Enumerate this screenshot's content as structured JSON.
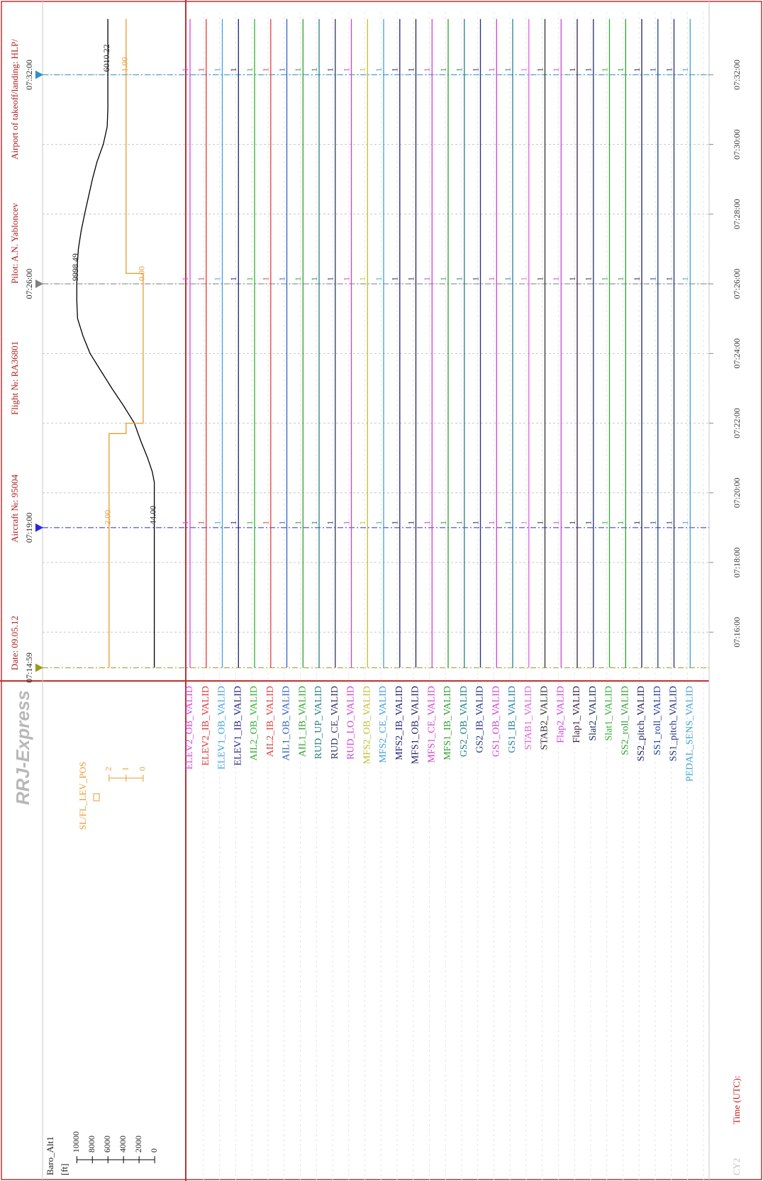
{
  "header": {
    "date": "Date: 09.05.12",
    "aircraft": "Aircraft №: 95004",
    "flight": "Flight №: RA36801",
    "pilot": "Pilot: A.N. Yabloncev",
    "airport": "Airport of takeoff/landing: HLP/"
  },
  "logo": "RRJ-Express",
  "footer": "CY2",
  "chart_data": {
    "type": "line",
    "x_label": "Time (UTC):",
    "xlim": [
      14.6,
      33.8
    ],
    "xticks": [
      {
        "value": 16,
        "label": "07:16:00"
      },
      {
        "value": 18,
        "label": "07:18:00"
      },
      {
        "value": 20,
        "label": "07:20:00"
      },
      {
        "value": 22,
        "label": "07:22:00"
      },
      {
        "value": 24,
        "label": "07:24:00"
      },
      {
        "value": 26,
        "label": "07:26:00"
      },
      {
        "value": 28,
        "label": "07:28:00"
      },
      {
        "value": 30,
        "label": "07:30:00"
      },
      {
        "value": 32,
        "label": "07:32:00"
      }
    ],
    "grid": true,
    "cursors": [
      {
        "value": 14.98,
        "label": "07:14:59",
        "color": "#9a9a20"
      },
      {
        "value": 19,
        "label": "07:19:00",
        "color": "#2828e0"
      },
      {
        "value": 26,
        "label": "07:26:00",
        "color": "#808080"
      },
      {
        "value": 32,
        "label": "07:32:00",
        "color": "#2a90c8"
      }
    ],
    "series": [
      {
        "name": "Baro_Alt1",
        "unit": "[ft]",
        "color": "#000000",
        "ylim": [
          -4000,
          14400
        ],
        "yticks": [
          0,
          2000,
          4000,
          6000,
          8000,
          10000
        ],
        "x": [
          14.98,
          19,
          20.3,
          20.6,
          21,
          21.5,
          22,
          22.5,
          23,
          23.5,
          24,
          24.5,
          25,
          25.5,
          26,
          26.5,
          27,
          27.5,
          28,
          28.5,
          29,
          29.5,
          30,
          30.5,
          31,
          32,
          33.6
        ],
        "values": [
          44,
          44,
          44,
          300,
          900,
          1800,
          2600,
          4000,
          5500,
          6900,
          8300,
          9200,
          9900,
          10000,
          9998.49,
          9950,
          9800,
          9450,
          9000,
          8500,
          8000,
          7400,
          6600,
          6100,
          6010.22,
          6010.22,
          6010.22
        ],
        "value_labels": [
          null,
          "44.00",
          null,
          null,
          null,
          null,
          null,
          null,
          null,
          null,
          null,
          null,
          null,
          null,
          "9998.49",
          null,
          null,
          null,
          null,
          null,
          null,
          null,
          null,
          null,
          null,
          "6010.22",
          null
        ]
      },
      {
        "name": "SL/FL_LEV_POS",
        "color": "#e89a30",
        "ylim": [
          -2.5,
          5.9
        ],
        "yticks": [
          0,
          1,
          2
        ],
        "x": [
          14.98,
          19,
          21.7,
          21.7,
          22.0,
          22.0,
          26,
          26.3,
          26.3,
          32,
          33.6
        ],
        "values": [
          2,
          2,
          2,
          1,
          1,
          0,
          0,
          0,
          1,
          1,
          1
        ],
        "value_labels": [
          null,
          "2.00",
          null,
          null,
          null,
          null,
          "0.00",
          null,
          null,
          "1.00",
          null
        ]
      }
    ],
    "discrete": {
      "x": [
        14.98,
        19,
        26,
        32,
        33.6
      ],
      "series": [
        {
          "name": "ELEV2_OB_VALID",
          "color": "#e040e0",
          "values": [
            1,
            1,
            1,
            1,
            1
          ],
          "value_labels": [
            null,
            "1",
            "1",
            "1",
            null
          ]
        },
        {
          "name": "ELEV2_IB_VALID",
          "color": "#e03838",
          "values": [
            1,
            1,
            1,
            1,
            1
          ],
          "value_labels": [
            null,
            "1",
            "1",
            "1",
            null
          ]
        },
        {
          "name": "ELEV1_OB_VALID",
          "color": "#40a0e0",
          "values": [
            1,
            1,
            1,
            1,
            1
          ],
          "value_labels": [
            null,
            "1",
            "1",
            "1",
            null
          ]
        },
        {
          "name": "ELEV1_IB_VALID",
          "color": "#202080",
          "values": [
            1,
            1,
            1,
            1,
            1
          ],
          "value_labels": [
            null,
            "1",
            "1",
            "1",
            null
          ]
        },
        {
          "name": "AIL2_OB_VALID",
          "color": "#30b030",
          "values": [
            1,
            1,
            1,
            1,
            1
          ],
          "value_labels": [
            null,
            "1",
            "1",
            "1",
            null
          ]
        },
        {
          "name": "AIL2_IB_VALID",
          "color": "#e04040",
          "values": [
            1,
            1,
            1,
            1,
            1
          ],
          "value_labels": [
            null,
            "1",
            "1",
            "1",
            null
          ]
        },
        {
          "name": "AIL1_OB_VALID",
          "color": "#3060c0",
          "values": [
            1,
            1,
            1,
            1,
            1
          ],
          "value_labels": [
            null,
            "1",
            "1",
            "1",
            null
          ]
        },
        {
          "name": "AIL1_IB_VALID",
          "color": "#30a030",
          "values": [
            1,
            1,
            1,
            1,
            1
          ],
          "value_labels": [
            null,
            "1",
            "1",
            "1",
            null
          ]
        },
        {
          "name": "RUD_UP_VALID",
          "color": "#208080",
          "values": [
            1,
            1,
            1,
            1,
            1
          ],
          "value_labels": [
            null,
            "1",
            "1",
            "1",
            null
          ]
        },
        {
          "name": "RUD_CE_VALID",
          "color": "#303060",
          "values": [
            1,
            1,
            1,
            1,
            1
          ],
          "value_labels": [
            null,
            "1",
            "1",
            "1",
            null
          ]
        },
        {
          "name": "RUD_LO_VALID",
          "color": "#d040d0",
          "values": [
            1,
            1,
            1,
            1,
            1
          ],
          "value_labels": [
            null,
            "1",
            "1",
            "1",
            null
          ]
        },
        {
          "name": "MFS2_OB_VALID",
          "color": "#c0c030",
          "values": [
            1,
            1,
            1,
            1,
            1
          ],
          "value_labels": [
            null,
            "1",
            "1",
            "1",
            null
          ]
        },
        {
          "name": "MFS2_CE_VALID",
          "color": "#40a0e0",
          "values": [
            1,
            1,
            1,
            1,
            1
          ],
          "value_labels": [
            null,
            "1",
            "1",
            "1",
            null
          ]
        },
        {
          "name": "MFS2_IB_VALID",
          "color": "#202080",
          "values": [
            1,
            1,
            1,
            1,
            1
          ],
          "value_labels": [
            null,
            "1",
            "1",
            "1",
            null
          ]
        },
        {
          "name": "MFS1_OB_VALID",
          "color": "#202060",
          "values": [
            1,
            1,
            1,
            1,
            1
          ],
          "value_labels": [
            null,
            "1",
            "1",
            "1",
            null
          ]
        },
        {
          "name": "MFS1_CE_VALID",
          "color": "#d040d0",
          "values": [
            1,
            1,
            1,
            1,
            1
          ],
          "value_labels": [
            null,
            "1",
            "1",
            "1",
            null
          ]
        },
        {
          "name": "MFS1_IB_VALID",
          "color": "#30a030",
          "values": [
            1,
            1,
            1,
            1,
            1
          ],
          "value_labels": [
            null,
            "1",
            "1",
            "1",
            null
          ]
        },
        {
          "name": "GS2_OB_VALID",
          "color": "#208080",
          "values": [
            1,
            1,
            1,
            1,
            1
          ],
          "value_labels": [
            null,
            "1",
            "1",
            "1",
            null
          ]
        },
        {
          "name": "GS2_IB_VALID",
          "color": "#203080",
          "values": [
            1,
            1,
            1,
            1,
            1
          ],
          "value_labels": [
            null,
            "1",
            "1",
            "1",
            null
          ]
        },
        {
          "name": "GS1_OB_VALID",
          "color": "#d040d0",
          "values": [
            1,
            1,
            1,
            1,
            1
          ],
          "value_labels": [
            null,
            "1",
            "1",
            "1",
            null
          ]
        },
        {
          "name": "GS1_IB_VALID",
          "color": "#2080a0",
          "values": [
            1,
            1,
            1,
            1,
            1
          ],
          "value_labels": [
            null,
            "1",
            "1",
            "1",
            null
          ]
        },
        {
          "name": "STAB1_VALID",
          "color": "#e060e0",
          "values": [
            1,
            1,
            1,
            1,
            1
          ],
          "value_labels": [
            null,
            "1",
            "1",
            "1",
            null
          ]
        },
        {
          "name": "STAB2_VALID",
          "color": "#303030",
          "values": [
            1,
            1,
            1,
            1,
            1
          ],
          "value_labels": [
            null,
            "1",
            "1",
            "1",
            null
          ]
        },
        {
          "name": "Flap2_VALID",
          "color": "#d040e0",
          "values": [
            1,
            1,
            1,
            1,
            1
          ],
          "value_labels": [
            null,
            "1",
            "1",
            "1",
            null
          ]
        },
        {
          "name": "Flap1_VALID",
          "color": "#402040",
          "values": [
            1,
            1,
            1,
            1,
            1
          ],
          "value_labels": [
            null,
            "1",
            "1",
            "1",
            null
          ]
        },
        {
          "name": "Slat2_VALID",
          "color": "#203060",
          "values": [
            1,
            1,
            1,
            1,
            1
          ],
          "value_labels": [
            null,
            "1",
            "1",
            "1",
            null
          ]
        },
        {
          "name": "Slat1_VALID",
          "color": "#30b030",
          "values": [
            1,
            1,
            1,
            1,
            1
          ],
          "value_labels": [
            null,
            "1",
            "1",
            "1",
            null
          ]
        },
        {
          "name": "SS2_roll_VALID",
          "color": "#30a030",
          "values": [
            1,
            1,
            1,
            1,
            1
          ],
          "value_labels": [
            null,
            "1",
            "1",
            "1",
            null
          ]
        },
        {
          "name": "SS2_pitch_VALID",
          "color": "#202060",
          "values": [
            1,
            1,
            1,
            1,
            1
          ],
          "value_labels": [
            null,
            "1",
            "1",
            "1",
            null
          ]
        },
        {
          "name": "SS1_roll_VALID",
          "color": "#2040a0",
          "values": [
            1,
            1,
            1,
            1,
            1
          ],
          "value_labels": [
            null,
            "1",
            "1",
            "1",
            null
          ]
        },
        {
          "name": "SS1_pitch_VALID",
          "color": "#203080",
          "values": [
            1,
            1,
            1,
            1,
            1
          ],
          "value_labels": [
            null,
            "1",
            "1",
            "1",
            null
          ]
        },
        {
          "name": "PEDAL_SENS_VALID",
          "color": "#40a0d0",
          "values": [
            1,
            1,
            1,
            1,
            1
          ],
          "value_labels": [
            null,
            "1",
            "1",
            "1",
            null
          ]
        }
      ]
    }
  }
}
